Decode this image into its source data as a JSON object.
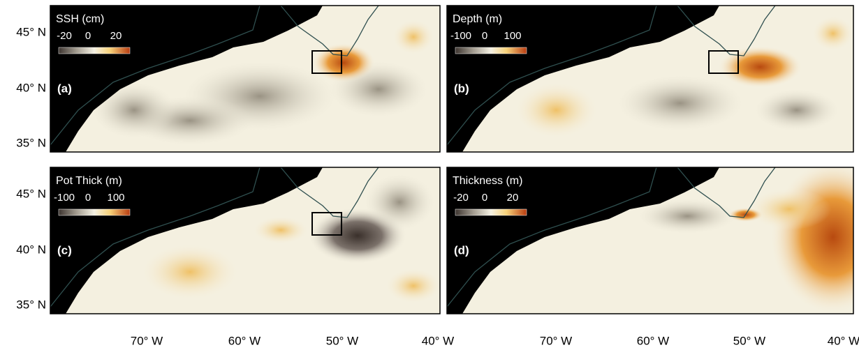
{
  "panels": [
    {
      "label": "(a)",
      "colorbar": {
        "title": "SSH (cm)",
        "ticks": [
          "-20",
          "0",
          "20"
        ]
      }
    },
    {
      "label": "(b)",
      "colorbar": {
        "title": "Depth (m)",
        "ticks": [
          "-100",
          "0",
          "100"
        ]
      }
    },
    {
      "label": "(c)",
      "colorbar": {
        "title": "Pot Thick (m)",
        "ticks": [
          "-100",
          "0",
          "100"
        ]
      }
    },
    {
      "label": "(d)",
      "colorbar": {
        "title": "Thickness (m)",
        "ticks": [
          "-20",
          "0",
          "20"
        ]
      }
    }
  ],
  "lat_labels": [
    "45° N",
    "40° N",
    "35° N"
  ],
  "lon_labels": [
    "70° W",
    "60° W",
    "50° W",
    "40° W"
  ]
}
